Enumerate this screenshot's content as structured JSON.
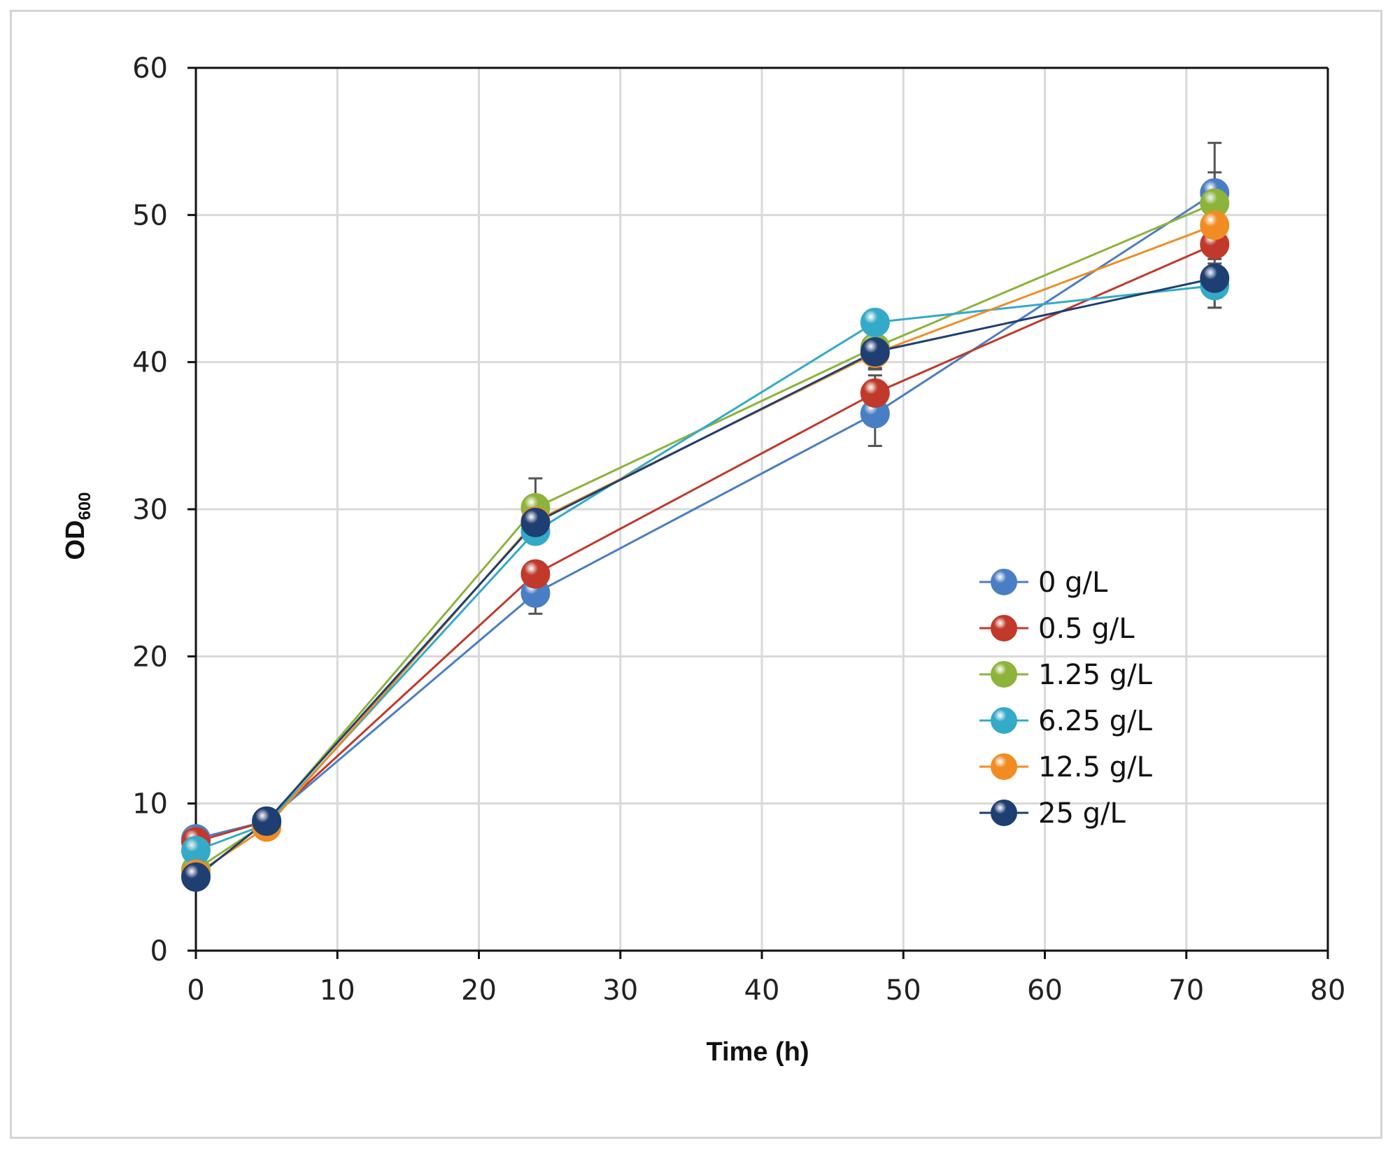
{
  "chart_data": {
    "type": "line",
    "title": "",
    "xlabel": "Time (h)",
    "ylabel": {
      "main": "OD",
      "subscript": "600"
    },
    "xlim": [
      0,
      80
    ],
    "ylim": [
      0,
      60
    ],
    "xticks": [
      "0",
      "10",
      "20",
      "30",
      "40",
      "50",
      "60",
      "70",
      "80"
    ],
    "yticks": [
      "0",
      "10",
      "20",
      "30",
      "40",
      "50",
      "60"
    ],
    "x": [
      0,
      5,
      24,
      48,
      72
    ],
    "grid": true,
    "legend_position": "right-middle",
    "series": [
      {
        "name": "0 g/L",
        "color": "#4a7ec4",
        "values": [
          7.6,
          8.8,
          24.3,
          36.5,
          51.5
        ],
        "error": [
          0.3,
          0.4,
          1.4,
          2.2,
          3.4
        ]
      },
      {
        "name": "0.5 g/L",
        "color": "#c0392b",
        "values": [
          7.4,
          8.8,
          25.6,
          37.9,
          48.0
        ],
        "error": [
          0.3,
          0.4,
          0.8,
          1.2,
          1.0
        ]
      },
      {
        "name": "1.25 g/L",
        "color": "#8db33a",
        "values": [
          5.5,
          8.7,
          30.1,
          41.0,
          50.8
        ],
        "error": [
          0.3,
          0.4,
          2.0,
          1.2,
          2.1
        ]
      },
      {
        "name": "6.25 g/L",
        "color": "#33aac8",
        "values": [
          6.8,
          8.6,
          28.5,
          42.7,
          45.2
        ],
        "error": [
          0.3,
          0.4,
          0.8,
          0.8,
          1.5
        ]
      },
      {
        "name": "12.5 g/L",
        "color": "#f08c22",
        "values": [
          5.2,
          8.4,
          29.2,
          40.6,
          49.3
        ],
        "error": [
          0.3,
          0.4,
          0.9,
          1.0,
          1.2
        ]
      },
      {
        "name": "25 g/L",
        "color": "#1f3f73",
        "values": [
          5.0,
          8.8,
          29.1,
          40.7,
          45.7
        ],
        "error": [
          0.3,
          0.4,
          0.9,
          1.2,
          2.0
        ]
      }
    ]
  }
}
